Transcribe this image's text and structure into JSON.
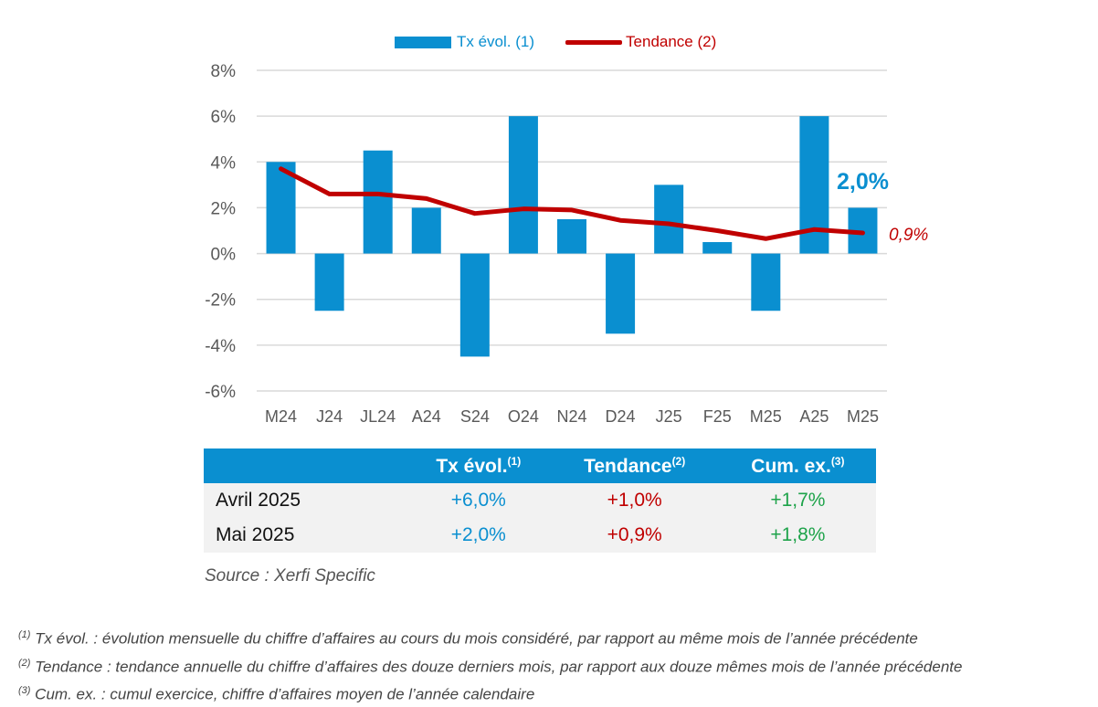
{
  "legend": {
    "bar_label": "Tx évol. (1)",
    "line_label": "Tendance (2)"
  },
  "chart_data": {
    "type": "bar",
    "categories": [
      "M24",
      "J24",
      "JL24",
      "A24",
      "S24",
      "O24",
      "N24",
      "D24",
      "J25",
      "F25",
      "M25",
      "A25",
      "M25"
    ],
    "series": [
      {
        "name": "Tx évol. (1)",
        "type": "bar",
        "color": "#0a8fd0",
        "values": [
          4.0,
          -2.5,
          4.5,
          2.0,
          -4.5,
          6.0,
          1.5,
          -3.5,
          3.0,
          0.5,
          -2.5,
          6.0,
          2.0
        ]
      },
      {
        "name": "Tendance (2)",
        "type": "line",
        "color": "#c00000",
        "values": [
          3.7,
          2.6,
          2.6,
          2.4,
          1.75,
          1.95,
          1.9,
          1.45,
          1.3,
          1.0,
          0.65,
          1.05,
          0.9
        ]
      }
    ],
    "ylim": [
      -6,
      8
    ],
    "yticks": [
      8,
      6,
      4,
      2,
      0,
      -2,
      -4,
      -6
    ],
    "ytick_labels": [
      "8%",
      "6%",
      "4%",
      "2%",
      "0%",
      "-2%",
      "-4%",
      "-6%"
    ],
    "grid": true,
    "annotations": {
      "last_bar_label": "2,0%",
      "last_line_label": "0,9%"
    }
  },
  "table": {
    "headers": [
      {
        "label": "Tx évol.",
        "sup": "(1)"
      },
      {
        "label": "Tendance",
        "sup": "(2)"
      },
      {
        "label": "Cum. ex.",
        "sup": "(3)"
      }
    ],
    "rows": [
      {
        "label": "Avril 2025",
        "tx": "+6,0%",
        "tendance": "+1,0%",
        "cum": "+1,7%"
      },
      {
        "label": "Mai 2025",
        "tx": "+2,0%",
        "tendance": "+0,9%",
        "cum": "+1,8%"
      }
    ]
  },
  "source": "Source : Xerfi Specific",
  "notes": [
    {
      "sup": "(1)",
      "text": " Tx évol. : évolution mensuelle du chiffre d’affaires au cours du mois considéré, par rapport au même mois de l’année précédente"
    },
    {
      "sup": "(2)",
      "text": " Tendance : tendance annuelle du chiffre d’affaires des douze derniers mois, par rapport aux douze mêmes mois de l’année précédente"
    },
    {
      "sup": "(3)",
      "text": " Cum. ex. : cumul exercice, chiffre d’affaires moyen de l’année calendaire"
    }
  ],
  "colors": {
    "bar": "#0a8fd0",
    "line": "#c00000",
    "green": "#1ea34a",
    "grid": "#d9d9d9"
  }
}
